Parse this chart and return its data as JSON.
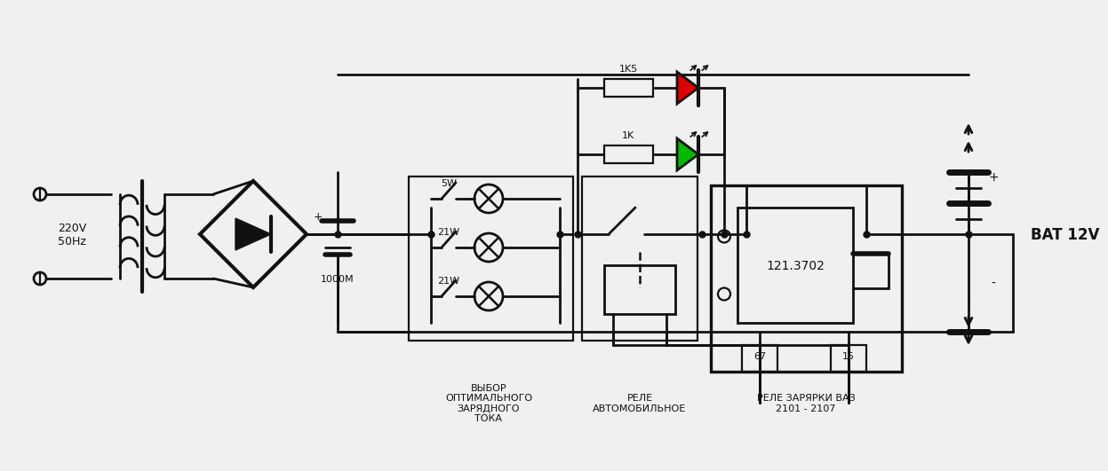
{
  "background": "#f0f0f0",
  "line_color": "#111111",
  "lw": 2.0,
  "label_220": "220V\n50Hz",
  "label_1000m": "1000M",
  "label_5w": "5W",
  "label_21w1": "21W",
  "label_21w2": "21W",
  "label_1k5": "1K5",
  "label_1k": "1K",
  "label_relay1": "РЕЛЕ\nАВТОМОБИЛЬНОЕ",
  "label_relay2": "121.3702",
  "label_relay3": "РЕЛЕ ЗАРЯРКИ ВАЗ\n2101 - 2107",
  "label_sel": "ВЫБОР\nОПТИМАЛЬНОГО\nЗАРЯДНОГО\nТОКА",
  "label_bat": "BAT 12V",
  "label_plus": "+",
  "label_minus": "-",
  "label_67": "67",
  "label_15": "15",
  "red_led_color": "#dd0000",
  "green_led_color": "#00bb00"
}
